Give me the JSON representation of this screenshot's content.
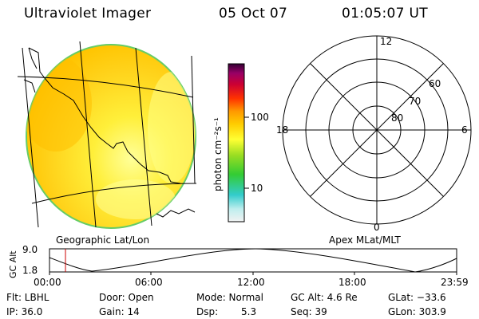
{
  "header": {
    "instrument": "Ultraviolet Imager",
    "date": "05 Oct 07",
    "time": "01:05:07 UT"
  },
  "left_panel": {
    "caption": "Geographic Lat/Lon"
  },
  "colorbar": {
    "unit_label": "photon cm⁻²s⁻¹",
    "tick_100": "100",
    "tick_10": "10",
    "gradient_stops": [
      "#f2f2f2",
      "#bfeeee",
      "#33cccc",
      "#33cc33",
      "#99dd22",
      "#ffff33",
      "#ffcc00",
      "#ff9900",
      "#ff3300",
      "#cc0033",
      "#990066",
      "#330033"
    ]
  },
  "polar_plot": {
    "caption": "Apex MLat/MLT",
    "mlt_top": "12",
    "mlt_bottom": "0",
    "mlt_left": "18",
    "mlt_right": "6",
    "lat_60": "60",
    "lat_70": "70",
    "lat_80": "80"
  },
  "altitude_plot": {
    "axis_label": "GC Alt",
    "y_top": "9.0",
    "y_bottom": "1.8",
    "x_ticks": [
      "00:00",
      "06:00",
      "12:00",
      "18:00",
      "23:59"
    ],
    "current_marker_color": "#cc0000"
  },
  "status": {
    "flt": "Flt: LBHL",
    "ip": "IP: 36.0",
    "door": "Door: Open",
    "gain": "Gain: 14",
    "mode": "Mode: Normal",
    "dsp_label": "Dsp:",
    "dsp_value": "5.3",
    "gc_alt": "GC Alt: 4.6 Re",
    "seq": "Seq: 39",
    "glat": "GLat: −33.6",
    "glon": "GLon: 303.9"
  }
}
